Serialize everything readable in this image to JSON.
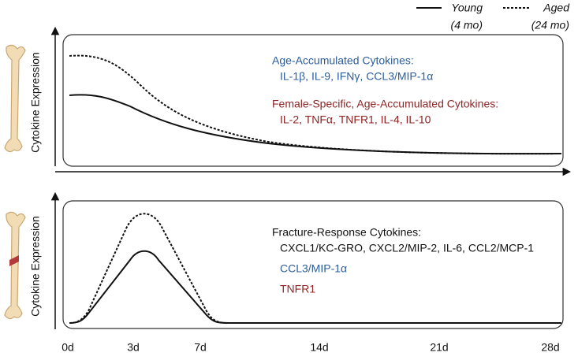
{
  "legend": [
    {
      "label": "Young",
      "sublabel": "(4 mo)"
    },
    {
      "label": "Aged",
      "sublabel": "(24 mo)"
    }
  ],
  "panels": [
    {
      "y_label": "Cytokine Expression",
      "annotations": [
        {
          "heading": "Age-Accumulated Cytokines:",
          "items": "IL-1β, IL-9, IFNγ, CCL3/MIP-1α"
        },
        {
          "heading": "Female-Specific, Age-Accumulated Cytokines:",
          "items": "IL-2, TNFα, TNFR1, IL-4, IL-10"
        }
      ]
    },
    {
      "y_label": "Cytokine Expression",
      "annotations": [
        {
          "heading": "Fracture-Response Cytokines:",
          "items": "CXCL1/KC-GRO, CXCL2/MIP-2, IL-6, CCL2/MCP-1"
        },
        {
          "items": "CCL3/MIP-1α"
        },
        {
          "items": "TNFR1"
        }
      ]
    }
  ],
  "x_ticks": [
    "0d",
    "3d",
    "7d",
    "14d",
    "21d",
    "28d"
  ]
}
